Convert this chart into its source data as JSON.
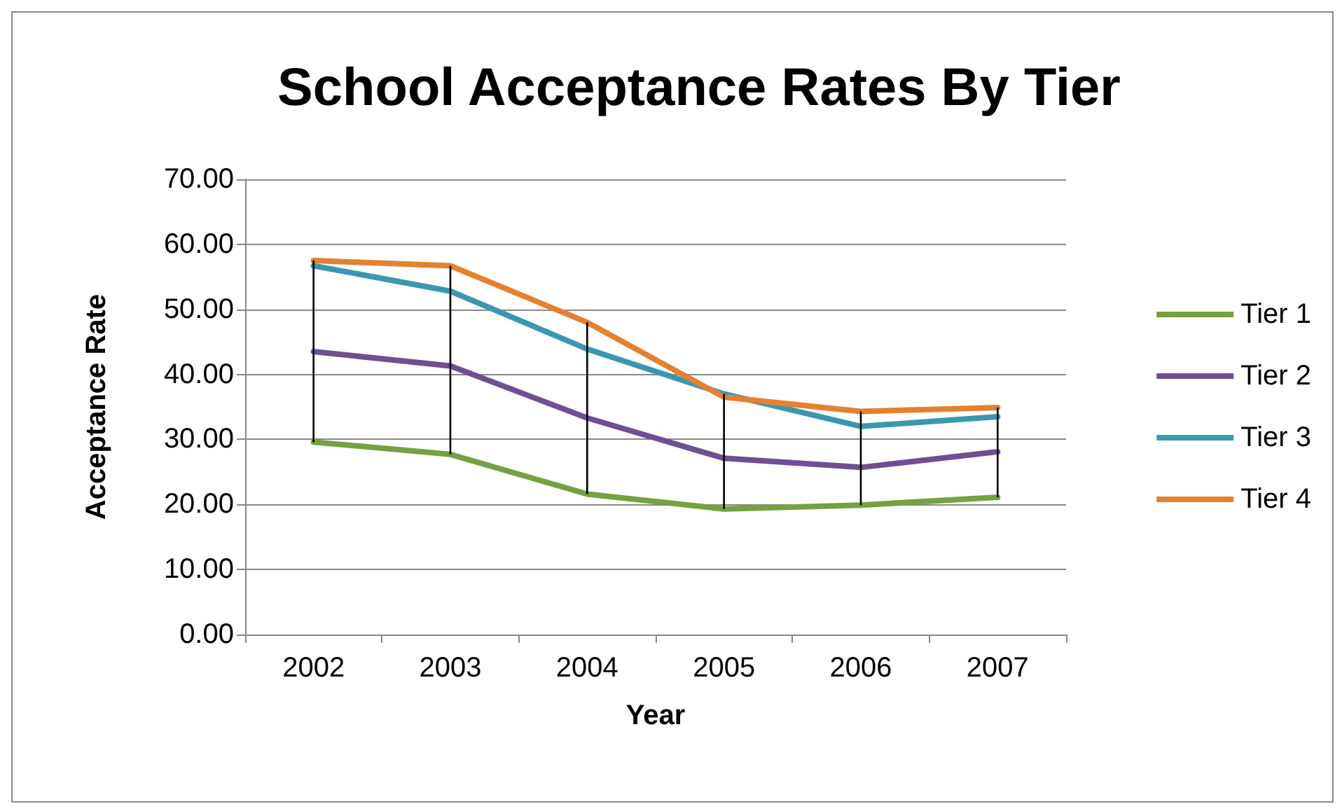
{
  "chart_data": {
    "type": "line",
    "title": "School Acceptance Rates By Tier",
    "xlabel": "Year",
    "ylabel": "Acceptance Rate",
    "categories": [
      "2002",
      "2003",
      "2004",
      "2005",
      "2006",
      "2007"
    ],
    "series": [
      {
        "name": "Tier 1",
        "color": "#77a041",
        "values": [
          29.6,
          27.7,
          21.6,
          19.3,
          19.9,
          21.1
        ],
        "errors": [
          [
            29.6,
            57.5
          ],
          [
            27.7,
            56.7
          ],
          [
            21.6,
            48.0
          ],
          [
            19.3,
            37.0
          ],
          [
            19.9,
            34.3
          ],
          [
            21.1,
            34.9
          ]
        ]
      },
      {
        "name": "Tier 2",
        "color": "#6f4f93",
        "values": [
          43.5,
          41.3,
          33.3,
          27.1,
          25.7,
          28.1
        ]
      },
      {
        "name": "Tier 3",
        "color": "#3b97b0",
        "values": [
          56.7,
          52.8,
          43.9,
          37.0,
          32.0,
          33.5
        ]
      },
      {
        "name": "Tier 4",
        "color": "#e4812f",
        "values": [
          57.5,
          56.7,
          48.0,
          36.5,
          34.3,
          34.9
        ]
      }
    ],
    "ylim": [
      0,
      70
    ],
    "yticks": [
      {
        "value": 0,
        "label": "0.00"
      },
      {
        "value": 10,
        "label": "10.00"
      },
      {
        "value": 20,
        "label": "20.00"
      },
      {
        "value": 30,
        "label": "30.00"
      },
      {
        "value": 40,
        "label": "40.00"
      },
      {
        "value": 50,
        "label": "50.00"
      },
      {
        "value": 60,
        "label": "60.00"
      },
      {
        "value": 70,
        "label": "70.00"
      }
    ],
    "grid": "y",
    "legend": "right",
    "marker": "none",
    "line_style": "solid"
  }
}
